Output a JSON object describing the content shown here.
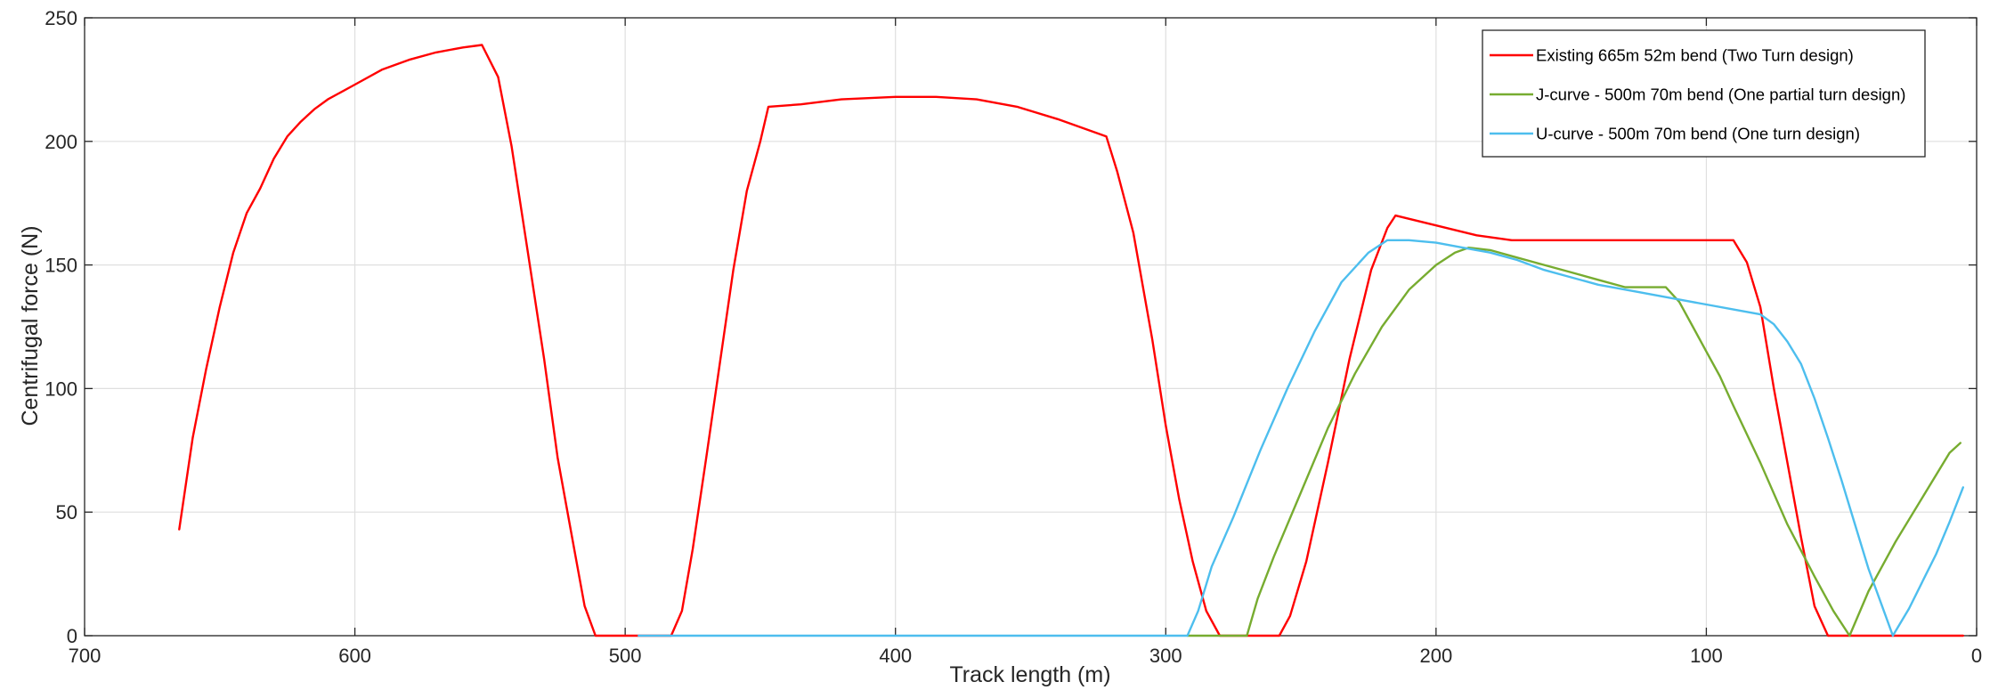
{
  "chart_data": {
    "type": "line",
    "title": "",
    "xlabel": "Track length (m)",
    "ylabel": "Centrifugal force (N)",
    "xlim": [
      700,
      0
    ],
    "x_reversed": true,
    "ylim": [
      0,
      250
    ],
    "xticks": [
      700,
      600,
      500,
      400,
      300,
      200,
      100,
      0
    ],
    "yticks": [
      0,
      50,
      100,
      150,
      200,
      250
    ],
    "grid": true,
    "legend_position": "top-right",
    "series": [
      {
        "name": "Existing 665m 52m bend (Two Turn design)",
        "color": "#ff0000",
        "points": [
          [
            665,
            43
          ],
          [
            660,
            80
          ],
          [
            655,
            108
          ],
          [
            650,
            133
          ],
          [
            645,
            155
          ],
          [
            640,
            171
          ],
          [
            635,
            181
          ],
          [
            630,
            193
          ],
          [
            625,
            202
          ],
          [
            620,
            208
          ],
          [
            615,
            213
          ],
          [
            610,
            217
          ],
          [
            600,
            223
          ],
          [
            590,
            229
          ],
          [
            580,
            233
          ],
          [
            570,
            236
          ],
          [
            560,
            238
          ],
          [
            553,
            239
          ],
          [
            547,
            226
          ],
          [
            542,
            198
          ],
          [
            536,
            155
          ],
          [
            530,
            112
          ],
          [
            525,
            72
          ],
          [
            520,
            42
          ],
          [
            515,
            12
          ],
          [
            511,
            0
          ],
          [
            495,
            0
          ],
          [
            483,
            0
          ],
          [
            479,
            10
          ],
          [
            475,
            35
          ],
          [
            470,
            72
          ],
          [
            465,
            110
          ],
          [
            460,
            148
          ],
          [
            455,
            180
          ],
          [
            450,
            200
          ],
          [
            447,
            214
          ],
          [
            435,
            215
          ],
          [
            420,
            217
          ],
          [
            400,
            218
          ],
          [
            385,
            218
          ],
          [
            370,
            217
          ],
          [
            355,
            214
          ],
          [
            340,
            209
          ],
          [
            322,
            202
          ],
          [
            318,
            188
          ],
          [
            312,
            163
          ],
          [
            305,
            120
          ],
          [
            300,
            85
          ],
          [
            295,
            55
          ],
          [
            290,
            30
          ],
          [
            285,
            10
          ],
          [
            280,
            0
          ],
          [
            258,
            0
          ],
          [
            254,
            8
          ],
          [
            248,
            30
          ],
          [
            240,
            70
          ],
          [
            232,
            112
          ],
          [
            224,
            148
          ],
          [
            218,
            165
          ],
          [
            215,
            170
          ],
          [
            200,
            166
          ],
          [
            185,
            162
          ],
          [
            172,
            160
          ],
          [
            150,
            160
          ],
          [
            120,
            160
          ],
          [
            100,
            160
          ],
          [
            90,
            160
          ],
          [
            85,
            151
          ],
          [
            80,
            133
          ],
          [
            75,
            100
          ],
          [
            70,
            70
          ],
          [
            65,
            40
          ],
          [
            60,
            12
          ],
          [
            55,
            0
          ],
          [
            20,
            0
          ],
          [
            8,
            0
          ],
          [
            5,
            0
          ]
        ]
      },
      {
        "name": "J-curve - 500m 70m bend (One partial turn design)",
        "color": "#77ac30",
        "points": [
          [
            292,
            0
          ],
          [
            270,
            0
          ],
          [
            266,
            15
          ],
          [
            260,
            32
          ],
          [
            250,
            58
          ],
          [
            240,
            84
          ],
          [
            230,
            106
          ],
          [
            220,
            125
          ],
          [
            210,
            140
          ],
          [
            200,
            150
          ],
          [
            193,
            155
          ],
          [
            188,
            157
          ],
          [
            180,
            156
          ],
          [
            170,
            153
          ],
          [
            160,
            150
          ],
          [
            150,
            147
          ],
          [
            140,
            144
          ],
          [
            130,
            141
          ],
          [
            115,
            141
          ],
          [
            110,
            135
          ],
          [
            105,
            125
          ],
          [
            100,
            115
          ],
          [
            95,
            105
          ],
          [
            90,
            93
          ],
          [
            80,
            70
          ],
          [
            70,
            45
          ],
          [
            60,
            24
          ],
          [
            53,
            10
          ],
          [
            47,
            0
          ],
          [
            40,
            18
          ],
          [
            30,
            38
          ],
          [
            20,
            56
          ],
          [
            10,
            74
          ],
          [
            6,
            78
          ]
        ]
      },
      {
        "name": "U-curve - 500m 70m bend (One turn design)",
        "color": "#4dbeee",
        "points": [
          [
            495,
            0
          ],
          [
            400,
            0
          ],
          [
            300,
            0
          ],
          [
            292,
            0
          ],
          [
            288,
            10
          ],
          [
            283,
            28
          ],
          [
            275,
            48
          ],
          [
            265,
            75
          ],
          [
            255,
            100
          ],
          [
            245,
            123
          ],
          [
            235,
            143
          ],
          [
            225,
            155
          ],
          [
            218,
            160
          ],
          [
            210,
            160
          ],
          [
            200,
            159
          ],
          [
            190,
            157
          ],
          [
            180,
            155
          ],
          [
            170,
            152
          ],
          [
            160,
            148
          ],
          [
            150,
            145
          ],
          [
            140,
            142
          ],
          [
            125,
            139
          ],
          [
            115,
            137
          ],
          [
            100,
            134
          ],
          [
            90,
            132
          ],
          [
            80,
            130
          ],
          [
            75,
            126
          ],
          [
            70,
            119
          ],
          [
            65,
            110
          ],
          [
            60,
            96
          ],
          [
            55,
            80
          ],
          [
            50,
            63
          ],
          [
            45,
            45
          ],
          [
            40,
            27
          ],
          [
            35,
            12
          ],
          [
            31,
            0
          ],
          [
            25,
            11
          ],
          [
            20,
            22
          ],
          [
            15,
            33
          ],
          [
            10,
            46
          ],
          [
            5,
            60
          ]
        ]
      }
    ]
  }
}
